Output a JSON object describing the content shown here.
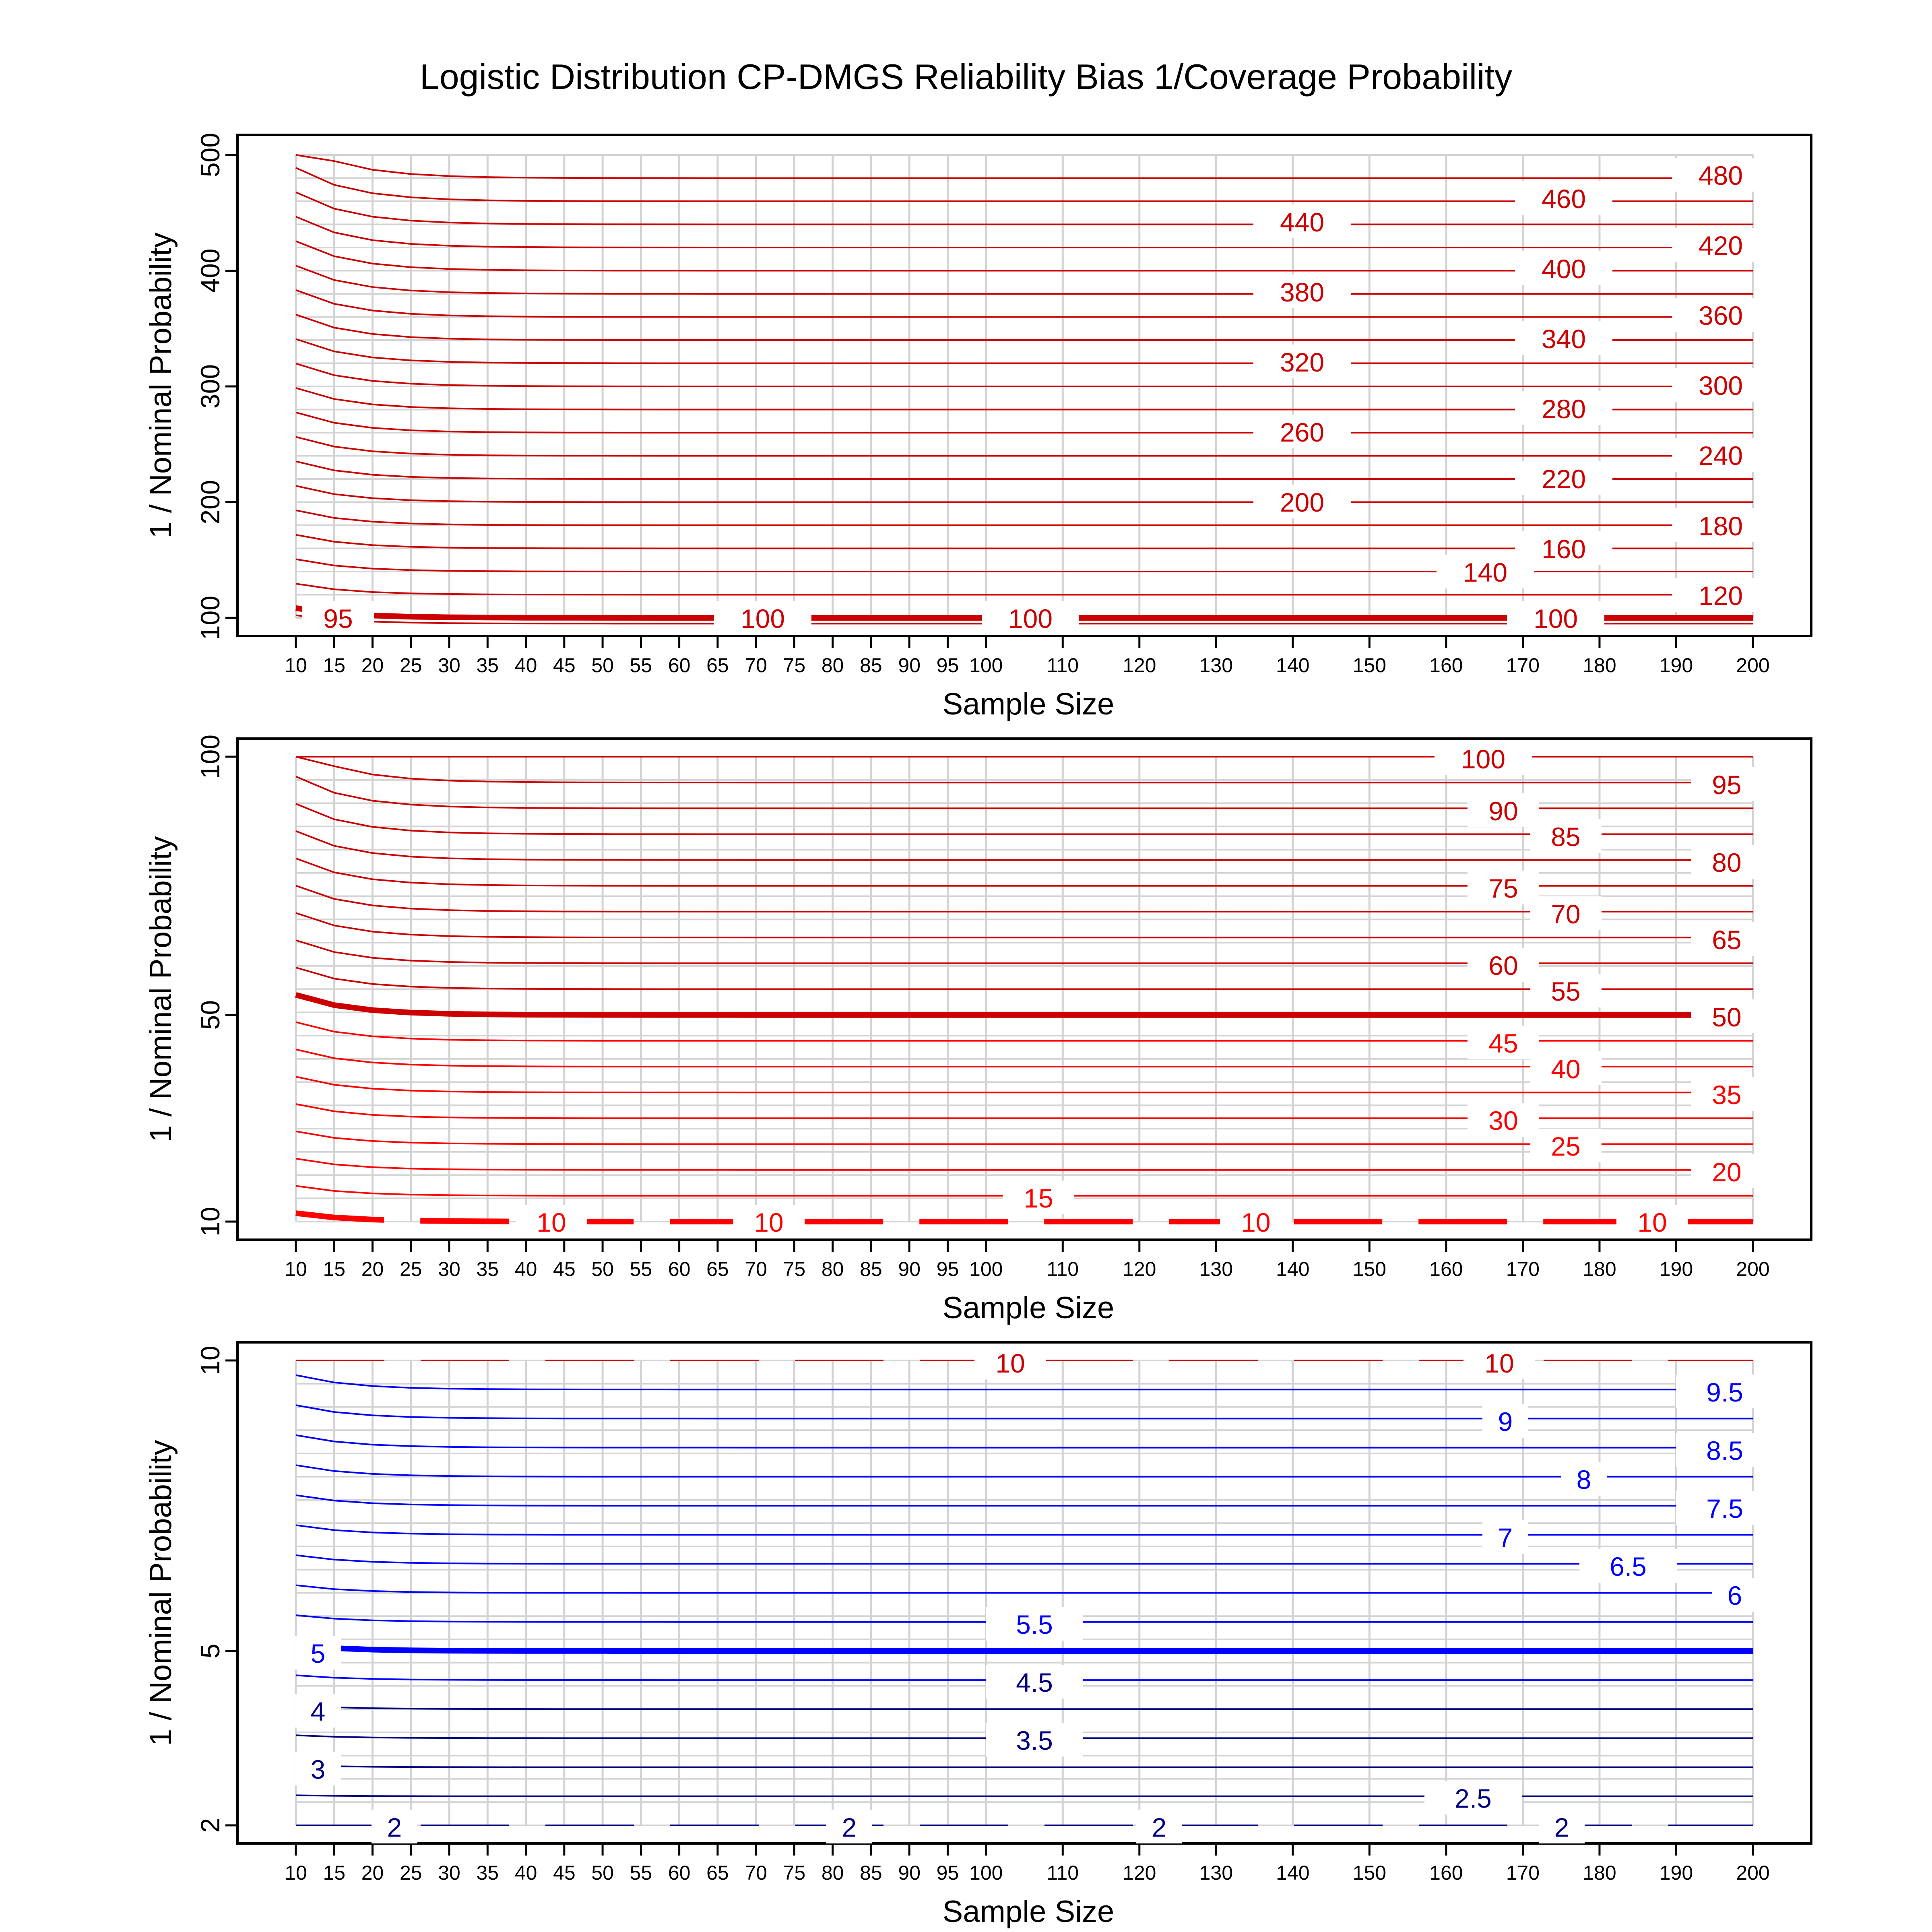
{
  "title": "Logistic Distribution CP-DMGS Reliability Bias 1/Coverage Probability",
  "colors": {
    "red": "#cc0000",
    "bright_red": "#ff0000",
    "blue": "#0000ff",
    "navy": "#000080",
    "grid": "#d3d3d3"
  },
  "chart_data": [
    {
      "type": "contour",
      "xlabel": "Sample Size",
      "ylabel": "1 / Nominal Probability",
      "x_ticks": [
        10,
        15,
        20,
        25,
        30,
        35,
        40,
        45,
        50,
        55,
        60,
        65,
        70,
        75,
        80,
        85,
        90,
        95,
        100,
        110,
        120,
        130,
        140,
        150,
        160,
        170,
        180,
        190,
        200
      ],
      "y_ticks": [
        100,
        200,
        300,
        400,
        500
      ],
      "ylim": [
        100,
        500
      ],
      "xlim": [
        10,
        200
      ],
      "grid": true,
      "contour_levels": [
        95,
        100,
        120,
        140,
        160,
        180,
        200,
        220,
        240,
        260,
        280,
        300,
        320,
        340,
        360,
        380,
        400,
        420,
        440,
        460,
        480
      ],
      "contour_labels": [
        "95",
        "100",
        "100",
        "100",
        "120",
        "140",
        "160",
        "180",
        "200",
        "220",
        "240",
        "260",
        "280",
        "300",
        "320",
        "340",
        "360",
        "380",
        "400",
        "420",
        "440",
        "460",
        "480"
      ]
    },
    {
      "type": "contour",
      "xlabel": "Sample Size",
      "ylabel": "1 / Nominal Probability",
      "x_ticks": [
        10,
        15,
        20,
        25,
        30,
        35,
        40,
        45,
        50,
        55,
        60,
        65,
        70,
        75,
        80,
        85,
        90,
        95,
        100,
        110,
        120,
        130,
        140,
        150,
        160,
        170,
        180,
        190,
        200
      ],
      "y_ticks": [
        10,
        50,
        100
      ],
      "ylim": [
        10,
        100
      ],
      "xlim": [
        10,
        200
      ],
      "grid": true,
      "contour_levels": [
        10,
        15,
        20,
        25,
        30,
        35,
        40,
        45,
        50,
        55,
        60,
        65,
        70,
        75,
        80,
        85,
        90,
        95,
        100
      ],
      "contour_labels": [
        "10",
        "10",
        "10",
        "10",
        "15",
        "20",
        "25",
        "30",
        "35",
        "40",
        "45",
        "50",
        "55",
        "60",
        "65",
        "70",
        "75",
        "80",
        "85",
        "90",
        "95",
        "100"
      ]
    },
    {
      "type": "contour",
      "xlabel": "Sample Size",
      "ylabel": "1 / Nominal Probability",
      "x_ticks": [
        10,
        15,
        20,
        25,
        30,
        35,
        40,
        45,
        50,
        55,
        60,
        65,
        70,
        75,
        80,
        85,
        90,
        95,
        100,
        110,
        120,
        130,
        140,
        150,
        160,
        170,
        180,
        190,
        200
      ],
      "y_ticks": [
        2,
        5,
        10
      ],
      "ylim": [
        2,
        10
      ],
      "xlim": [
        10,
        200
      ],
      "grid": true,
      "contour_levels": [
        2,
        2.5,
        3,
        3.5,
        4,
        4.5,
        5,
        5.5,
        6,
        6.5,
        7,
        7.5,
        8,
        8.5,
        9,
        9.5,
        10
      ],
      "contour_labels": [
        "10",
        "10",
        "9.5",
        "9",
        "8.5",
        "8",
        "7.5",
        "7",
        "6.5",
        "6",
        "5.5",
        "5",
        "4.5",
        "4",
        "3.5",
        "3",
        "2.5",
        "2",
        "2",
        "2",
        "2"
      ]
    }
  ]
}
